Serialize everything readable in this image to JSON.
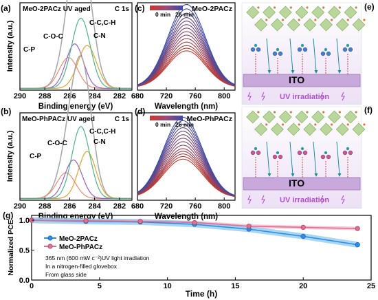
{
  "colors": {
    "envelope": "#a9a9a9",
    "c_p": "#f08a6e",
    "c_o_c": "#9860c8",
    "c_n": "#e6a12a",
    "c_c": "#4cb48a",
    "series_2pacz": "#2f8fe8",
    "series_2pacz_band": "#8cc8ee",
    "series_phpacz": "#e06f93",
    "series_phpacz_band": "#f1b9c9",
    "ito_bar": "#c9a8dc",
    "uv_text": "#b04fd0",
    "uv_bg": "#efe6f6",
    "perovskite": "#b9d79a",
    "gradient_start": "#c8392b",
    "gradient_end": "#3b4aa8"
  },
  "panels": {
    "a": {
      "letter": "(a)",
      "title": "MeO-2PACz UV aged",
      "element": "C 1s",
      "ylabel": "Intensity (a.u.)",
      "xlabel": "Binding energy (eV)",
      "labels": {
        "c_o_c": "C-O-C",
        "c_p": "C-P",
        "c_c": "C-C,C-H",
        "c_n": "C-N"
      }
    },
    "b": {
      "letter": "(b)",
      "title": "MeO-PhPACz UV aged",
      "element": "C 1s",
      "ylabel": "Intensity (a.u.)",
      "xlabel": "Binding energy (eV)",
      "labels": {
        "c_o_c": "C-O-C",
        "c_p": "C-P",
        "c_c": "C-C,C-H",
        "c_n": "C-N"
      }
    },
    "c": {
      "letter": "(c)",
      "title": "MeO-2PACz",
      "ylabel": "",
      "xlabel": "Wavelength (nm)",
      "gradient_start_label": "0 min",
      "gradient_end_label": "26 min"
    },
    "d": {
      "letter": "(d)",
      "title": "MeO-PhPACz",
      "ylabel": "",
      "xlabel": "Wavelength (nm)",
      "gradient_start_label": "0 min",
      "gradient_end_label": "26 min"
    },
    "e": {
      "letter": "(e)",
      "substrate": "ITO",
      "uv": "UV irradiation"
    },
    "f": {
      "letter": "(f)",
      "substrate": "ITO",
      "uv": "UV irradiation"
    },
    "g": {
      "letter": "(g)",
      "ylabel": "Normalized PCE",
      "xlabel": "Time (h)",
      "legend": [
        "MeO-2PACz",
        "MeO-PhPACz"
      ],
      "notes": [
        "365 nm (600 mW c⁻²)UV light irradiation",
        "In a nitrogen-filled glovebox",
        "From glass side"
      ]
    }
  },
  "chart_data": [
    {
      "id": "a",
      "type": "line",
      "title": "MeO-2PACz UV aged",
      "xlabel": "Binding energy (eV)",
      "ylabel": "Intensity (a.u.)",
      "xlim": [
        290,
        281
      ],
      "xticks": [
        290,
        288,
        286,
        284,
        282
      ],
      "peaks": [
        {
          "name": "C-P",
          "center": 286.1,
          "height": 0.36,
          "width": 0.75
        },
        {
          "name": "C-O-C",
          "center": 285.6,
          "height": 0.52,
          "width": 0.7
        },
        {
          "name": "C-N",
          "center": 284.6,
          "height": 0.5,
          "width": 0.75
        },
        {
          "name": "C-C,C-H",
          "center": 285.1,
          "height": 0.82,
          "width": 0.75
        }
      ]
    },
    {
      "id": "b",
      "type": "line",
      "title": "MeO-PhPACz UV aged",
      "xlabel": "Binding energy (eV)",
      "ylabel": "Intensity (a.u.)",
      "xlim": [
        290,
        281
      ],
      "xticks": [
        290,
        288,
        286,
        284,
        282
      ],
      "peaks": [
        {
          "name": "C-P",
          "center": 286.3,
          "height": 0.3,
          "width": 0.75
        },
        {
          "name": "C-O-C",
          "center": 285.7,
          "height": 0.45,
          "width": 0.7
        },
        {
          "name": "C-N",
          "center": 284.6,
          "height": 0.55,
          "width": 0.7
        },
        {
          "name": "C-C,C-H",
          "center": 285.1,
          "height": 0.84,
          "width": 0.72
        }
      ]
    },
    {
      "id": "c",
      "type": "line",
      "title": "MeO-2PACz",
      "xlabel": "Wavelength (nm)",
      "xlim": [
        680,
        815
      ],
      "xticks": [
        680,
        720,
        760,
        800
      ],
      "peak_center": 748,
      "peak_sigma": 26,
      "curve_count": 14,
      "time_range_min": [
        0,
        26
      ],
      "peak_heights": [
        0.95,
        0.9,
        0.85,
        0.8,
        0.76,
        0.72,
        0.68,
        0.64,
        0.6,
        0.56,
        0.52,
        0.48,
        0.45,
        0.42
      ]
    },
    {
      "id": "d",
      "type": "line",
      "title": "MeO-PhPACz",
      "xlabel": "Wavelength (nm)",
      "xlim": [
        680,
        815
      ],
      "xticks": [
        680,
        720,
        760,
        800
      ],
      "peak_center": 743,
      "peak_sigma": 27,
      "curve_count": 14,
      "time_range_min": [
        0,
        26
      ],
      "peak_heights": [
        0.92,
        0.88,
        0.84,
        0.8,
        0.76,
        0.72,
        0.68,
        0.64,
        0.6,
        0.56,
        0.53,
        0.5,
        0.47,
        0.44
      ]
    },
    {
      "id": "g",
      "type": "line",
      "xlabel": "Time (h)",
      "ylabel": "Normalized PCE",
      "xlim": [
        0,
        25
      ],
      "ylim": [
        0,
        1.08
      ],
      "xticks": [
        0,
        5,
        10,
        15,
        20,
        25
      ],
      "yticks": [
        0.0,
        0.5,
        1.0
      ],
      "series": [
        {
          "name": "MeO-2PACz",
          "x": [
            0,
            4,
            8,
            12,
            16,
            20,
            24
          ],
          "y": [
            1.0,
            0.98,
            0.97,
            0.93,
            0.85,
            0.73,
            0.59
          ],
          "band": 0.05
        },
        {
          "name": "MeO-PhPACz",
          "x": [
            0,
            4,
            8,
            12,
            16,
            20,
            24
          ],
          "y": [
            1.0,
            0.99,
            0.98,
            0.96,
            0.9,
            0.88,
            0.86
          ],
          "band": 0.03
        }
      ]
    }
  ]
}
